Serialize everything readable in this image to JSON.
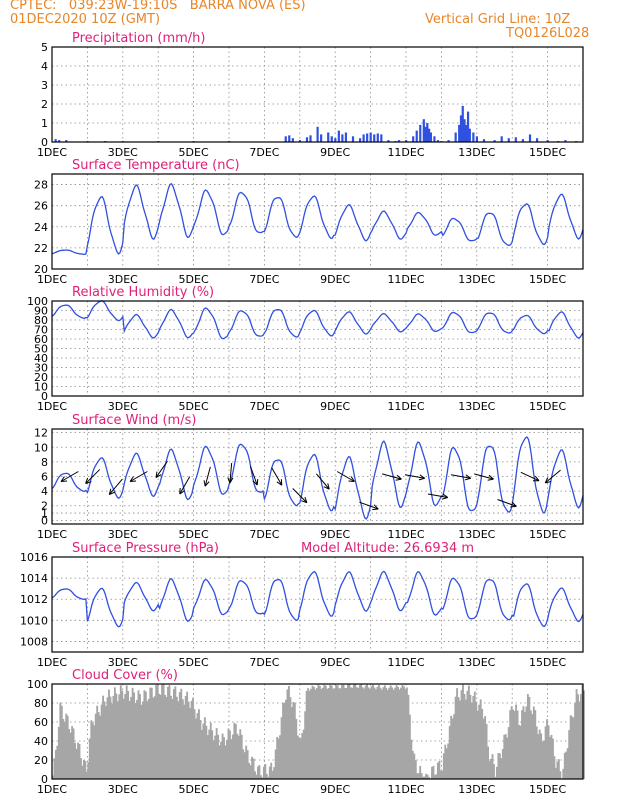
{
  "header": {
    "line1_left": "CPTEC:   039:23W-19:10S   BARRA NOVA (ES)",
    "line2_left": "01DEC2020 10Z (GMT)",
    "line1_right": "Vertical Grid Line: 10Z",
    "line2_right": "TQ0126L028"
  },
  "colors": {
    "header": "#e8862a",
    "panel_title": "#e0207a",
    "series": "#3050e0",
    "cloud": "#a6a6a6",
    "wind_arrow": "#000000"
  },
  "x_axis": {
    "tick_labels": [
      "1DEC",
      "3DEC",
      "5DEC",
      "7DEC",
      "9DEC",
      "11DEC",
      "13DEC",
      "15DEC"
    ],
    "day_range": [
      1,
      16
    ],
    "grid": "dashed-daily"
  },
  "chart_data": [
    {
      "type": "bar",
      "title": "Precipitation (mm/h)",
      "ylim": [
        0,
        5
      ],
      "yticks": [
        "0",
        "1",
        "2",
        "3",
        "4",
        "5"
      ],
      "x": [
        1.1,
        1.2,
        1.4,
        2.0,
        2.5,
        3.0,
        4.0,
        5.0,
        6.0,
        7.6,
        7.7,
        7.8,
        8.0,
        8.2,
        8.3,
        8.5,
        8.6,
        8.8,
        8.9,
        9.0,
        9.1,
        9.2,
        9.3,
        9.5,
        9.7,
        9.8,
        9.9,
        10.0,
        10.1,
        10.2,
        10.3,
        10.5,
        10.7,
        10.8,
        11.0,
        11.2,
        11.3,
        11.4,
        11.5,
        11.55,
        11.6,
        11.65,
        11.7,
        11.8,
        11.9,
        12.0,
        12.2,
        12.4,
        12.5,
        12.55,
        12.6,
        12.65,
        12.7,
        12.75,
        12.8,
        12.9,
        13.0,
        13.2,
        13.5,
        13.7,
        13.9,
        14.1,
        14.3,
        14.5,
        14.7,
        15.0,
        15.3,
        15.5,
        15.8
      ],
      "values": [
        0.15,
        0.1,
        0.1,
        0.05,
        0.05,
        0.05,
        0.05,
        0.05,
        0.05,
        0.3,
        0.35,
        0.2,
        0.1,
        0.25,
        0.35,
        0.8,
        0.4,
        0.5,
        0.3,
        0.2,
        0.6,
        0.4,
        0.5,
        0.3,
        0.2,
        0.4,
        0.45,
        0.5,
        0.4,
        0.45,
        0.4,
        0.1,
        0.05,
        0.1,
        0.1,
        0.3,
        0.6,
        0.9,
        1.2,
        0.8,
        1.0,
        0.7,
        0.5,
        0.3,
        0.1,
        0.05,
        0.1,
        0.5,
        0.9,
        1.4,
        1.9,
        1.2,
        0.9,
        1.6,
        0.7,
        0.5,
        0.3,
        0.15,
        0.1,
        0.3,
        0.2,
        0.25,
        0.15,
        0.4,
        0.2,
        0.1,
        0.05,
        0.1,
        0.05
      ]
    },
    {
      "type": "line",
      "title": "Surface Temperature (nC)",
      "ylim": [
        20,
        29
      ],
      "yticks": [
        "20",
        "22",
        "24",
        "26",
        "28"
      ],
      "series": [
        {
          "min": [
            21.4,
            21.6,
            23.0,
            23.1,
            23.2,
            23.3,
            23.0,
            23.0,
            22.8,
            22.9,
            23.2,
            22.6,
            22.2,
            22.4,
            23.0,
            23.6
          ],
          "max": [
            21.8,
            26.8,
            27.8,
            27.9,
            27.4,
            27.3,
            26.9,
            26.9,
            26.0,
            25.4,
            25.3,
            24.8,
            25.4,
            26.2,
            27.0,
            27.4
          ]
        }
      ]
    },
    {
      "type": "line",
      "title": "Relative Humidity (%)",
      "ylim": [
        0,
        100
      ],
      "yticks": [
        "0",
        "10",
        "20",
        "30",
        "40",
        "50",
        "60",
        "70",
        "80",
        "90",
        "100"
      ],
      "series": [
        {
          "min": [
            82,
            80,
            62,
            62,
            60,
            62,
            62,
            64,
            66,
            68,
            68,
            66,
            66,
            66,
            62,
            58
          ],
          "max": [
            96,
            100,
            85,
            90,
            92,
            90,
            92,
            90,
            88,
            86,
            86,
            88,
            88,
            85,
            88,
            80
          ]
        }
      ]
    },
    {
      "type": "line",
      "title": "Surface Wind (m/s)",
      "ylim": [
        -0.5,
        12.5
      ],
      "yticks": [
        "0",
        "1",
        "2",
        "4",
        "6",
        "8",
        "10",
        "12"
      ],
      "series": [
        {
          "min": [
            4.0,
            3.2,
            3.5,
            3.0,
            3.5,
            3.6,
            2.0,
            1.5,
            0.5,
            2.0,
            2.0,
            1.0,
            1.0,
            1.2,
            2.0,
            1.4
          ],
          "max": [
            6.5,
            8.5,
            9.0,
            9.5,
            10.0,
            10.5,
            8.5,
            9.0,
            8.5,
            10.5,
            10.5,
            10.0,
            10.5,
            11.5,
            9.5,
            10.0
          ]
        }
      ],
      "wind_arrows": "direction-only"
    },
    {
      "type": "line",
      "title": "Surface Pressure (hPa)",
      "annotation": "Model Altitude: 26.6934 m",
      "ylim": [
        1007,
        1016
      ],
      "yticks": [
        "1008",
        "1010",
        "1012",
        "1014",
        "1016"
      ],
      "series": [
        {
          "min": [
            1012.0,
            1009.5,
            1011.0,
            1010.0,
            1010.5,
            1010.5,
            1010.0,
            1010.5,
            1011.0,
            1011.0,
            1010.5,
            1010.0,
            1010.0,
            1009.5,
            1010.0,
            1010.0
          ],
          "max": [
            1013.0,
            1013.0,
            1013.5,
            1013.8,
            1013.8,
            1013.8,
            1014.0,
            1014.6,
            1014.5,
            1014.5,
            1014.5,
            1014.0,
            1014.0,
            1013.5,
            1013.0,
            1012.5
          ]
        }
      ]
    },
    {
      "type": "area",
      "title": "Cloud Cover (%)",
      "ylim": [
        0,
        100
      ],
      "yticks": [
        "0",
        "20",
        "40",
        "60",
        "80",
        "100"
      ],
      "x": [
        1.0,
        1.1,
        1.2,
        1.5,
        1.8,
        1.95,
        2.1,
        2.5,
        3.0,
        3.5,
        4.0,
        4.5,
        4.9,
        5.2,
        5.5,
        5.8,
        6.2,
        6.5,
        6.8,
        7.2,
        7.4,
        7.6,
        7.8,
        8.0,
        8.2,
        8.5,
        9.0,
        9.5,
        10.0,
        10.5,
        11.0,
        11.2,
        11.4,
        11.6,
        11.8,
        12.0,
        12.2,
        12.4,
        12.6,
        12.8,
        13.0,
        13.2,
        13.3,
        13.5,
        13.8,
        14.0,
        14.2,
        14.4,
        14.6,
        14.8,
        15.0,
        15.2,
        15.4,
        15.6,
        15.8,
        16.0
      ],
      "values": [
        5,
        30,
        75,
        55,
        25,
        8,
        60,
        85,
        92,
        85,
        95,
        90,
        82,
        60,
        50,
        40,
        55,
        25,
        8,
        10,
        50,
        95,
        80,
        35,
        95,
        97,
        97,
        98,
        97,
        96,
        97,
        20,
        5,
        3,
        10,
        15,
        50,
        88,
        92,
        90,
        80,
        70,
        30,
        10,
        45,
        80,
        60,
        85,
        70,
        40,
        60,
        20,
        5,
        55,
        88,
        92
      ]
    }
  ]
}
